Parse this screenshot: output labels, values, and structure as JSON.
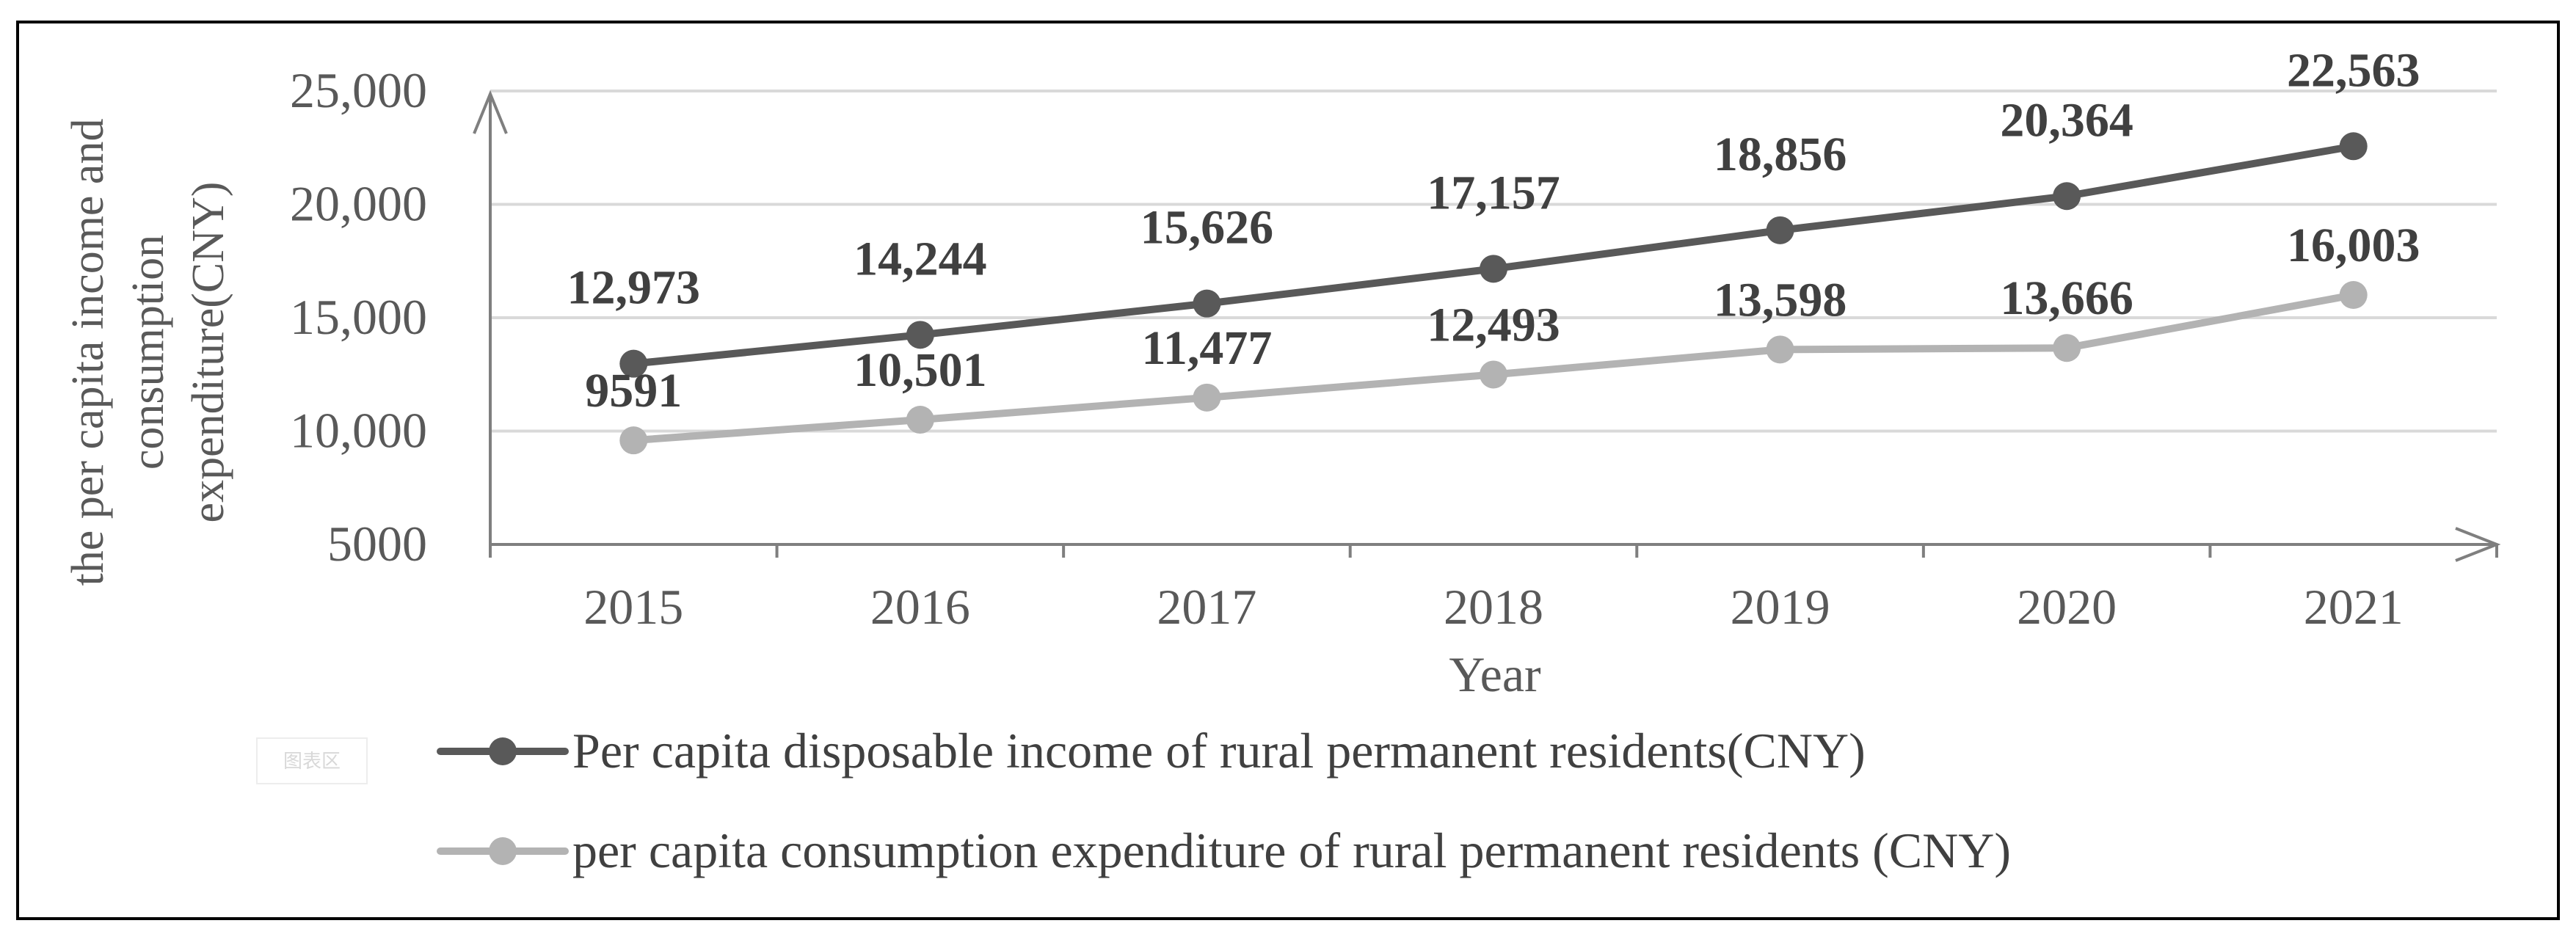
{
  "chart_data": {
    "type": "line",
    "title": "",
    "xlabel": "Year",
    "ylabel_lines": [
      "the per capita income and",
      "consumption",
      "expenditure(CNY)"
    ],
    "categories": [
      "2015",
      "2016",
      "2017",
      "2018",
      "2019",
      "2020",
      "2021"
    ],
    "y_ticks": [
      "5000",
      "10,000",
      "15,000",
      "20,000",
      "25,000"
    ],
    "ylim": [
      5000,
      25000
    ],
    "grid": true,
    "series": [
      {
        "name": "Per capita disposable income of rural permanent residents(CNY)",
        "color": "#595959",
        "values": [
          12973,
          14244,
          15626,
          17157,
          18856,
          20364,
          22563
        ],
        "labels": [
          "12,973",
          "14,244",
          "15,626",
          "17,157",
          "18,856",
          "20,364",
          "22,563"
        ]
      },
      {
        "name": "per capita consumption expenditure of rural permanent residents (CNY)",
        "color": "#b3b3b3",
        "values": [
          9591,
          10501,
          11477,
          12493,
          13598,
          13666,
          16003
        ],
        "labels": [
          "9591",
          "10,501",
          "11,477",
          "12,493",
          "13,598",
          "13,666",
          "16,003"
        ]
      }
    ],
    "legend_position": "bottom"
  },
  "watermark": "图表区",
  "colors": {
    "grid": "#d9d9d9",
    "axis": "#7f7f7f",
    "frame": "#000000"
  }
}
